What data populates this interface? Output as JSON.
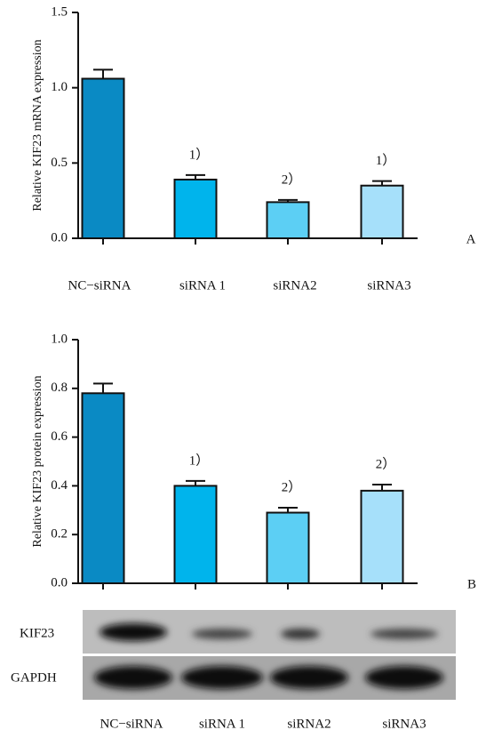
{
  "chart_data": [
    {
      "type": "bar",
      "panel_label": "A",
      "ylabel": "Relative KIF23 mRNA expression",
      "categories": [
        "NC−siRNA",
        "siRNA 1",
        "siRNA2",
        "siRNA3"
      ],
      "values": [
        1.06,
        0.39,
        0.24,
        0.35
      ],
      "errors": [
        0.06,
        0.03,
        0.015,
        0.03
      ],
      "annotations": [
        null,
        "1）",
        "2）",
        "1）"
      ],
      "colors": [
        "#0a8ac4",
        "#00b4ec",
        "#5ccff4",
        "#a6e0fa"
      ],
      "ylim": [
        0,
        1.5
      ],
      "yticks": [
        {
          "value": 0,
          "label": "0.0"
        },
        0.5,
        {
          "value": 1,
          "label": "1.0"
        },
        1.5
      ]
    },
    {
      "type": "bar",
      "panel_label": "B",
      "ylabel": "Relative KIF23 protein expression",
      "values": [
        0.78,
        0.4,
        0.29,
        0.38
      ],
      "errors": [
        0.04,
        0.02,
        0.02,
        0.025
      ],
      "annotations": [
        null,
        "1）",
        "2）",
        "2）"
      ],
      "colors": [
        "#0a8ac4",
        "#00b4ec",
        "#5ccff4",
        "#a6e0fa"
      ],
      "ylim": [
        0,
        1.0
      ],
      "yticks": [
        {
          "value": 0,
          "label": "0.0"
        },
        0.2,
        0.4,
        0.6,
        0.8,
        {
          "value": 1,
          "label": "1.0"
        }
      ]
    }
  ],
  "blot": {
    "rows": [
      "KIF23",
      "GAPDH"
    ],
    "lanes": [
      "NC−siRNA",
      "siRNA 1",
      "siRNA2",
      "siRNA3"
    ]
  }
}
